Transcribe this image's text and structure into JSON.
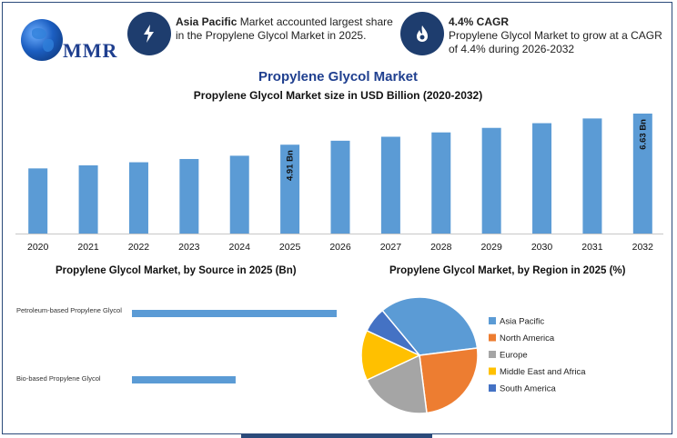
{
  "header": {
    "logo_text": "MMR",
    "card1": {
      "icon": "lightning-icon",
      "bold": "Asia Pacific",
      "text": " Market accounted largest share in the Propylene Glycol Market in 2025."
    },
    "card2": {
      "icon": "flame-icon",
      "bold": "4.4% CAGR",
      "text": "Propylene Glycol Market to grow at a CAGR of 4.4% during 2026-2032"
    }
  },
  "colors": {
    "bar": "#5b9bd5",
    "brand": "#1f3f8f",
    "pie": [
      "#5b9bd5",
      "#ed7d31",
      "#a5a5a5",
      "#ffc000",
      "#4472c4"
    ]
  },
  "chart_data": [
    {
      "type": "bar",
      "title": "Propylene Glycol Market",
      "subtitle": "Propylene Glycol Market size in USD Billion (2020-2032)",
      "categories": [
        "2020",
        "2021",
        "2022",
        "2023",
        "2024",
        "2025",
        "2026",
        "2027",
        "2028",
        "2029",
        "2030",
        "2031",
        "2032"
      ],
      "values": [
        3.6,
        3.77,
        3.94,
        4.12,
        4.3,
        4.91,
        5.13,
        5.35,
        5.59,
        5.84,
        6.1,
        6.36,
        6.63
      ],
      "data_labels": {
        "5": "4.91 Bn",
        "12": "6.63 Bn"
      },
      "ylim": [
        0,
        6.63
      ],
      "grid": false
    },
    {
      "type": "bar",
      "orientation": "horizontal",
      "title": "Propylene Glycol Market, by Source in 2025 (Bn)",
      "categories": [
        "Petroleum-based Propylene Glycol",
        "Bio-based Propylene Glycol"
      ],
      "values": [
        3.1,
        1.57
      ],
      "xlim": [
        0,
        3.1
      ]
    },
    {
      "type": "pie",
      "title": "Propylene Glycol Market, by Region in 2025 (%)",
      "categories": [
        "Asia Pacific",
        "North America",
        "Europe",
        "Middle East and Africa",
        "South America"
      ],
      "values": [
        34,
        25,
        20,
        14,
        7
      ],
      "legend": "right"
    }
  ]
}
